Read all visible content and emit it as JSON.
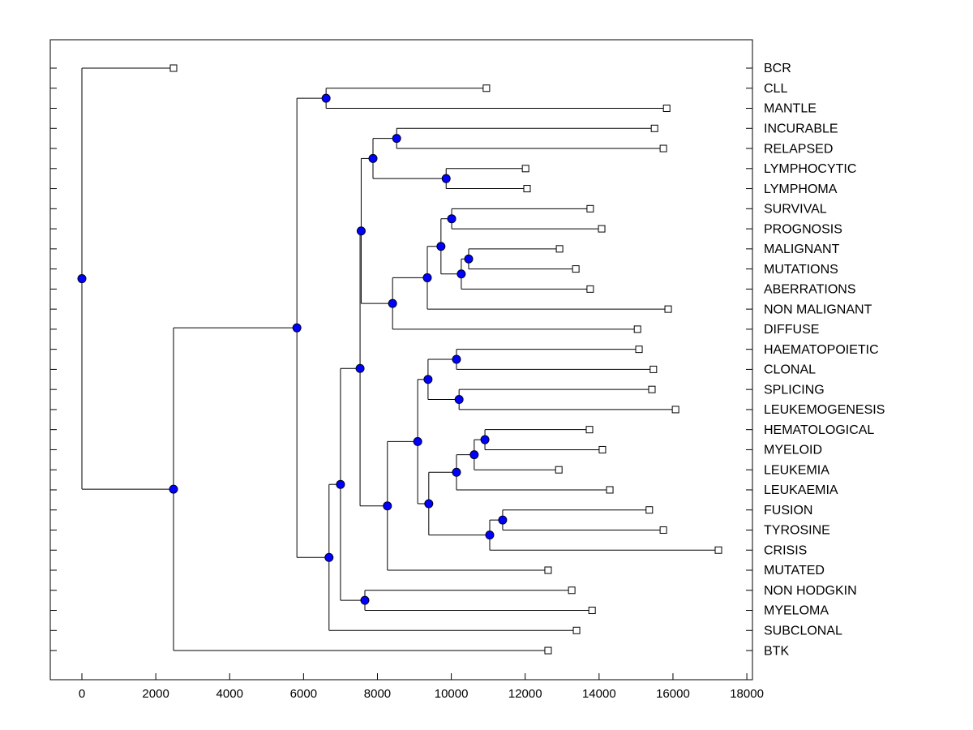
{
  "chart_data": {
    "type": "dendrogram",
    "orientation": "horizontal",
    "title": "",
    "xlabel": "",
    "ylabel": "",
    "xlim": [
      -900,
      18000
    ],
    "xticks": [
      0,
      2000,
      4000,
      6000,
      8000,
      10000,
      12000,
      14000,
      16000,
      18000
    ],
    "xtick_labels": [
      "0",
      "2000",
      "4000",
      "6000",
      "8000",
      "10000",
      "12000",
      "14000",
      "16000",
      "18000"
    ],
    "leaf_order": [
      "BCR",
      "CLL",
      "MANTLE",
      "INCURABLE",
      "RELAPSED",
      "LYMPHOCYTIC",
      "LYMPHOMA",
      "SURVIVAL",
      "PROGNOSIS",
      "MALIGNANT",
      "MUTATIONS",
      "ABERRATIONS",
      "NON MALIGNANT",
      "DIFFUSE",
      "HAEMATOPOIETIC",
      "CLONAL",
      "SPLICING",
      "LEUKEMOGENESIS",
      "HEMATOLOGICAL",
      "MYELOID",
      "LEUKEMIA",
      "LEUKAEMIA",
      "FUSION",
      "TYROSINE",
      "CRISIS",
      "MUTATED",
      "NON HODGKIN",
      "MYELOMA",
      "SUBCLONAL",
      "BTK"
    ],
    "node_color": "#0000ff",
    "tree": {
      "value": 0,
      "children": [
        {
          "leaf": "BCR",
          "value": 2480
        },
        {
          "value": 2480,
          "children": [
            {
              "value": 5820,
              "children": [
                {
                  "value": 6610,
                  "children": [
                    {
                      "leaf": "CLL",
                      "value": 10950
                    },
                    {
                      "leaf": "MANTLE",
                      "value": 15830
                    }
                  ]
                },
                {
                  "value": 6690,
                  "children": [
                    {
                      "value": 7000,
                      "children": [
                        {
                          "value": 7530,
                          "children": [
                            {
                              "value": 7560,
                              "children": [
                                {
                                  "value": 7880,
                                  "children": [
                                    {
                                      "value": 8520,
                                      "children": [
                                        {
                                          "leaf": "INCURABLE",
                                          "value": 15500
                                        },
                                        {
                                          "leaf": "RELAPSED",
                                          "value": 15740
                                        }
                                      ]
                                    },
                                    {
                                      "value": 9860,
                                      "children": [
                                        {
                                          "leaf": "LYMPHOCYTIC",
                                          "value": 12010
                                        },
                                        {
                                          "leaf": "LYMPHOMA",
                                          "value": 12050
                                        }
                                      ]
                                    }
                                  ]
                                },
                                {
                                  "value": 8410,
                                  "children": [
                                    {
                                      "value": 9350,
                                      "children": [
                                        {
                                          "value": 9720,
                                          "children": [
                                            {
                                              "value": 10010,
                                              "children": [
                                                {
                                                  "leaf": "SURVIVAL",
                                                  "value": 13760
                                                },
                                                {
                                                  "leaf": "PROGNOSIS",
                                                  "value": 14070
                                                }
                                              ]
                                            },
                                            {
                                              "value": 10270,
                                              "children": [
                                                {
                                                  "value": 10470,
                                                  "children": [
                                                    {
                                                      "leaf": "MALIGNANT",
                                                      "value": 12930
                                                    },
                                                    {
                                                      "leaf": "MUTATIONS",
                                                      "value": 13370
                                                    }
                                                  ]
                                                },
                                                {
                                                  "leaf": "ABERRATIONS",
                                                  "value": 13760
                                                }
                                              ]
                                            }
                                          ]
                                        },
                                        {
                                          "leaf": "NON MALIGNANT",
                                          "value": 15870
                                        }
                                      ]
                                    },
                                    {
                                      "leaf": "DIFFUSE",
                                      "value": 15040
                                    }
                                  ]
                                }
                              ]
                            },
                            {
                              "value": 8270,
                              "children": [
                                {
                                  "value": 9090,
                                  "children": [
                                    {
                                      "value": 9370,
                                      "children": [
                                        {
                                          "value": 10140,
                                          "children": [
                                            {
                                              "leaf": "HAEMATOPOIETIC",
                                              "value": 15080
                                            },
                                            {
                                              "leaf": "CLONAL",
                                              "value": 15470
                                            }
                                          ]
                                        },
                                        {
                                          "value": 10210,
                                          "children": [
                                            {
                                              "leaf": "SPLICING",
                                              "value": 15430
                                            },
                                            {
                                              "leaf": "LEUKEMOGENESIS",
                                              "value": 16070
                                            }
                                          ]
                                        }
                                      ]
                                    },
                                    {
                                      "value": 9390,
                                      "children": [
                                        {
                                          "value": 10140,
                                          "children": [
                                            {
                                              "value": 10620,
                                              "children": [
                                                {
                                                  "value": 10910,
                                                  "children": [
                                                    {
                                                      "leaf": "HEMATOLOGICAL",
                                                      "value": 13740
                                                    },
                                                    {
                                                      "leaf": "MYELOID",
                                                      "value": 14090
                                                    }
                                                  ]
                                                },
                                                {
                                                  "leaf": "LEUKEMIA",
                                                  "value": 12910
                                                }
                                              ]
                                            },
                                            {
                                              "leaf": "LEUKAEMIA",
                                              "value": 14290
                                            }
                                          ]
                                        },
                                        {
                                          "value": 11040,
                                          "children": [
                                            {
                                              "value": 11390,
                                              "children": [
                                                {
                                                  "leaf": "FUSION",
                                                  "value": 15360
                                                },
                                                {
                                                  "leaf": "TYROSINE",
                                                  "value": 15740
                                                }
                                              ]
                                            },
                                            {
                                              "leaf": "CRISIS",
                                              "value": 17230
                                            }
                                          ]
                                        }
                                      ]
                                    }
                                  ]
                                },
                                {
                                  "leaf": "MUTATED",
                                  "value": 12620
                                }
                              ]
                            }
                          ]
                        },
                        {
                          "value": 7660,
                          "children": [
                            {
                              "leaf": "NON HODGKIN",
                              "value": 13260
                            },
                            {
                              "leaf": "MYELOMA",
                              "value": 13810
                            }
                          ]
                        }
                      ]
                    },
                    {
                      "leaf": "SUBCLONAL",
                      "value": 13390
                    }
                  ]
                }
              ]
            },
            {
              "leaf": "BTK",
              "value": 12620
            }
          ]
        }
      ]
    }
  }
}
